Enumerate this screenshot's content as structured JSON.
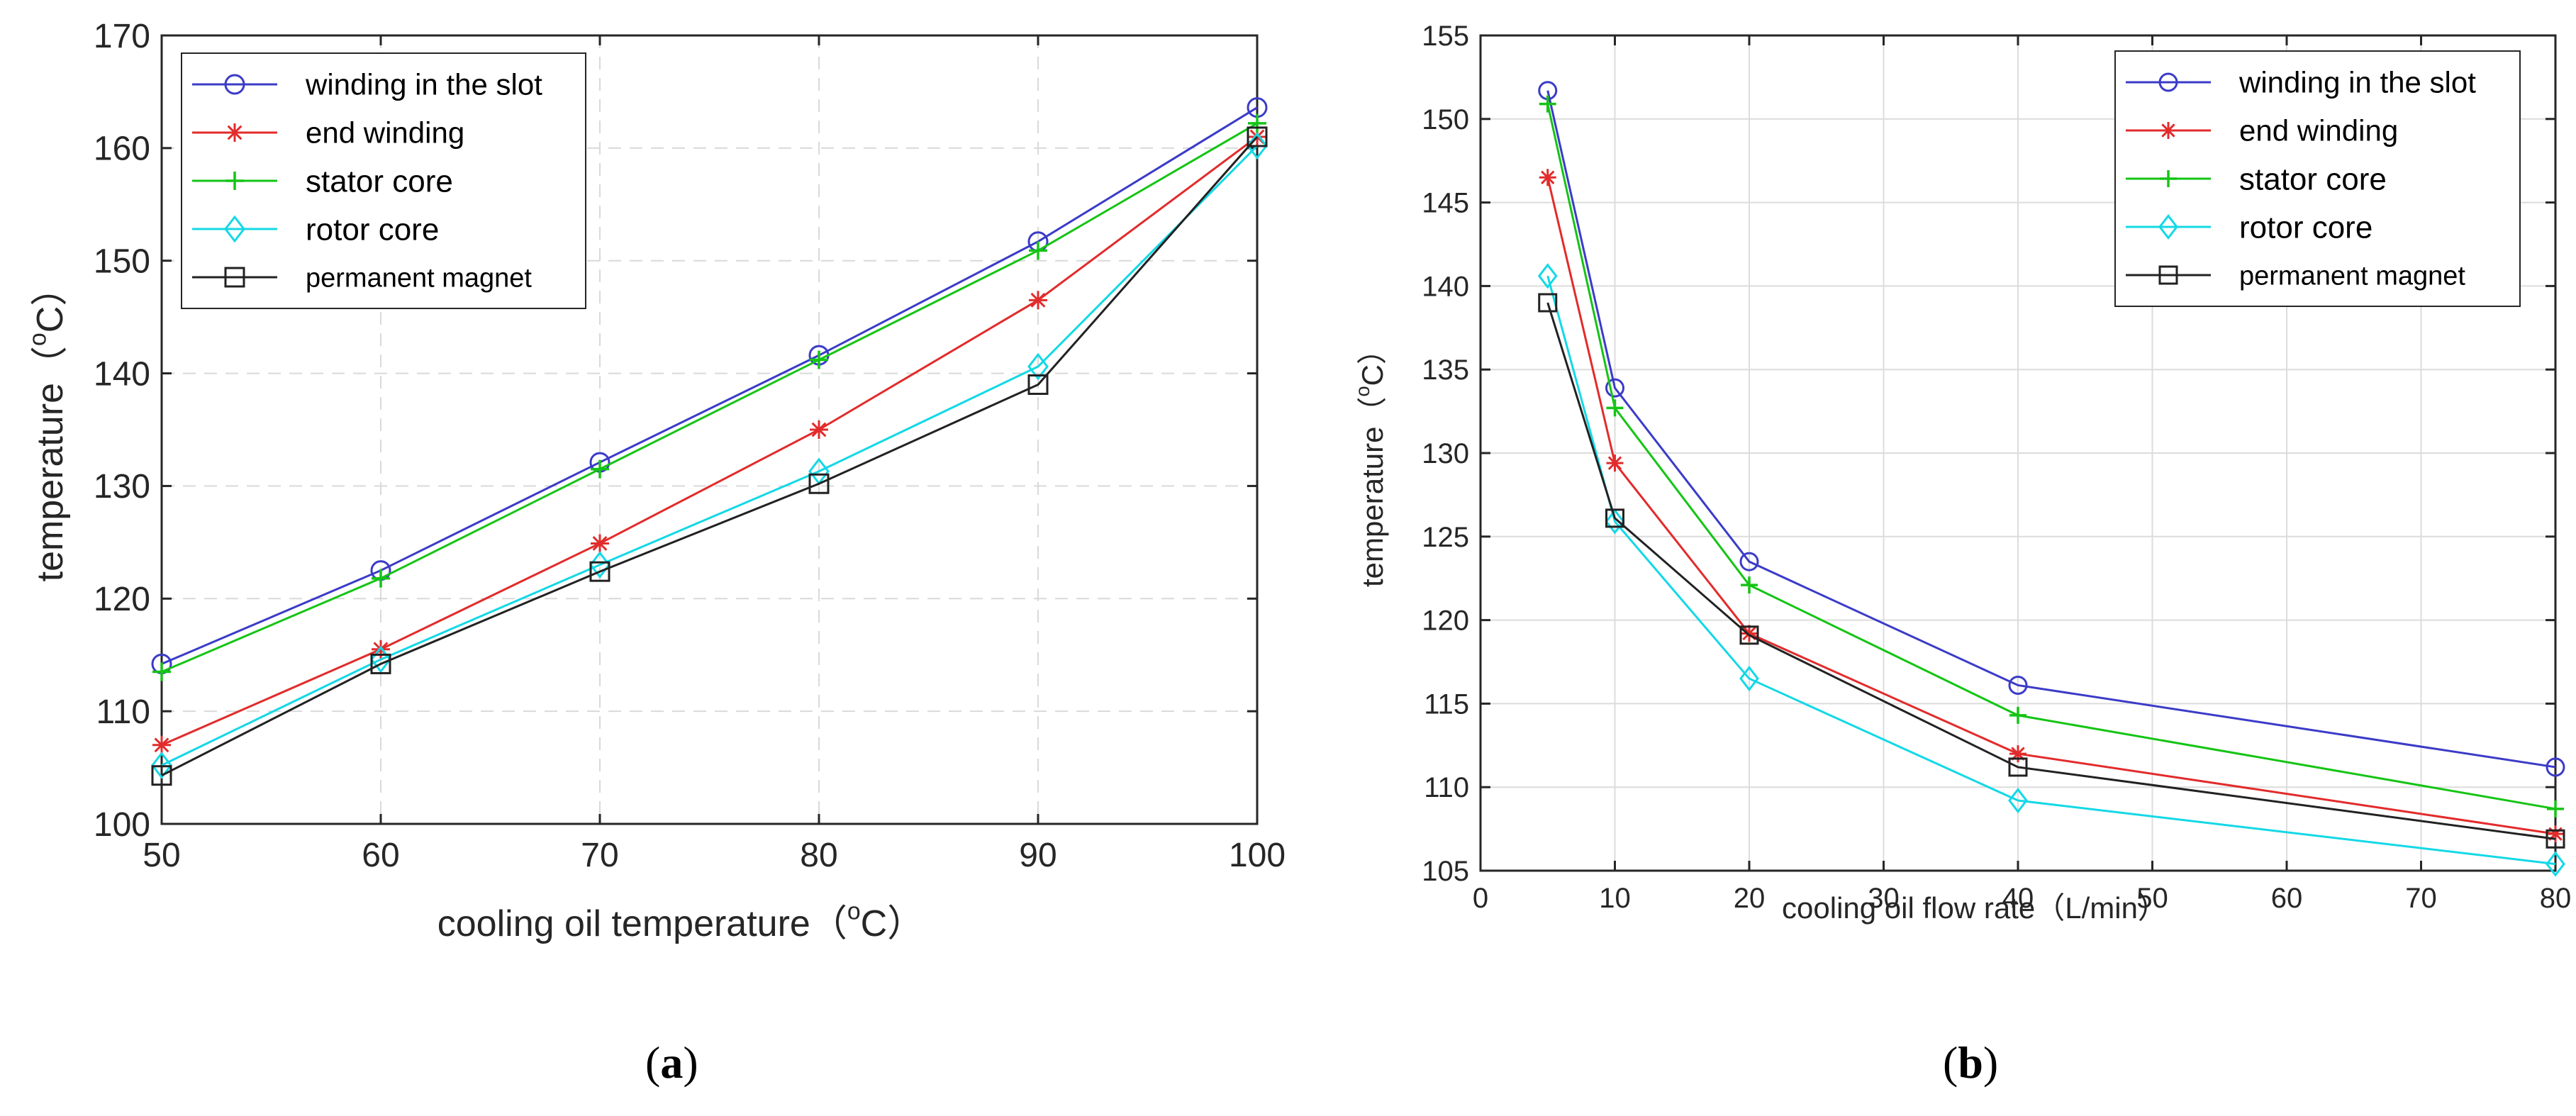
{
  "chart_data": [
    {
      "type": "line",
      "panel_label": "(a)",
      "xlabel": "cooling oil temperature（",
      "xlabel_unit_super": "o",
      "xlabel_unit_main": "C",
      "xlabel_close": "）",
      "ylabel": "temperature（",
      "ylabel_unit_super": "o",
      "ylabel_unit_main": "C",
      "ylabel_close": "）",
      "xlim": [
        50,
        100
      ],
      "ylim": [
        100,
        170
      ],
      "xticks": [
        50,
        60,
        70,
        80,
        90,
        100
      ],
      "yticks": [
        100,
        110,
        120,
        130,
        140,
        150,
        160,
        170
      ],
      "xtick_labels": [
        "50",
        "60",
        "70",
        "80",
        "90",
        "100"
      ],
      "ytick_labels": [
        "100",
        "110",
        "120",
        "130",
        "140",
        "150",
        "160",
        "170"
      ],
      "grid": true,
      "legend_position": "top-left",
      "x": [
        50,
        60,
        70,
        80,
        90,
        100
      ],
      "series": [
        {
          "name": "winding in the slot",
          "color": "#3b3bc8",
          "marker": "circle",
          "values": [
            114.2,
            122.5,
            132.1,
            141.6,
            151.7,
            163.6
          ]
        },
        {
          "name": "end winding",
          "color": "#e22b2b",
          "marker": "asterisk",
          "values": [
            107.0,
            115.5,
            124.9,
            135.0,
            146.5,
            161.0
          ]
        },
        {
          "name": "stator core",
          "color": "#15c415",
          "marker": "plus",
          "values": [
            113.5,
            121.8,
            131.5,
            141.2,
            150.9,
            162.2
          ]
        },
        {
          "name": "rotor core",
          "color": "#14d8e6",
          "marker": "diamond",
          "values": [
            105.2,
            114.6,
            123.0,
            131.3,
            140.6,
            160.2
          ]
        },
        {
          "name": "permanent magnet",
          "color": "#222222",
          "marker": "square",
          "values": [
            104.3,
            114.2,
            122.4,
            130.2,
            139.0,
            161.0
          ]
        }
      ]
    },
    {
      "type": "line",
      "panel_label": "(b)",
      "xlabel": "cooling oil flow rate（L/min）",
      "ylabel": "temperature（",
      "ylabel_unit_super": "o",
      "ylabel_unit_main": "C",
      "ylabel_close": "）",
      "xlim": [
        0,
        80
      ],
      "ylim": [
        105,
        155
      ],
      "xticks": [
        0,
        10,
        20,
        30,
        40,
        50,
        60,
        70,
        80
      ],
      "yticks": [
        105,
        110,
        115,
        120,
        125,
        130,
        135,
        140,
        145,
        150,
        155
      ],
      "xtick_labels": [
        "0",
        "10",
        "20",
        "30",
        "40",
        "50",
        "60",
        "70",
        "80"
      ],
      "ytick_labels": [
        "105",
        "110",
        "115",
        "120",
        "125",
        "130",
        "135",
        "140",
        "145",
        "150",
        "155"
      ],
      "grid": true,
      "legend_position": "top-right",
      "x": [
        5,
        10,
        20,
        40,
        80
      ],
      "series": [
        {
          "name": "winding in the slot",
          "color": "#3b3bc8",
          "marker": "circle",
          "values": [
            151.7,
            133.9,
            123.5,
            116.1,
            111.2
          ]
        },
        {
          "name": "end winding",
          "color": "#e22b2b",
          "marker": "asterisk",
          "values": [
            146.5,
            129.4,
            119.2,
            112.0,
            107.2
          ]
        },
        {
          "name": "stator core",
          "color": "#15c415",
          "marker": "plus",
          "values": [
            150.9,
            132.7,
            122.1,
            114.3,
            108.7
          ]
        },
        {
          "name": "rotor core",
          "color": "#14d8e6",
          "marker": "diamond",
          "values": [
            140.6,
            125.9,
            116.5,
            109.2,
            105.4
          ]
        },
        {
          "name": "permanent magnet",
          "color": "#222222",
          "marker": "square",
          "values": [
            139.0,
            126.1,
            119.1,
            111.2,
            106.9
          ]
        }
      ]
    }
  ]
}
